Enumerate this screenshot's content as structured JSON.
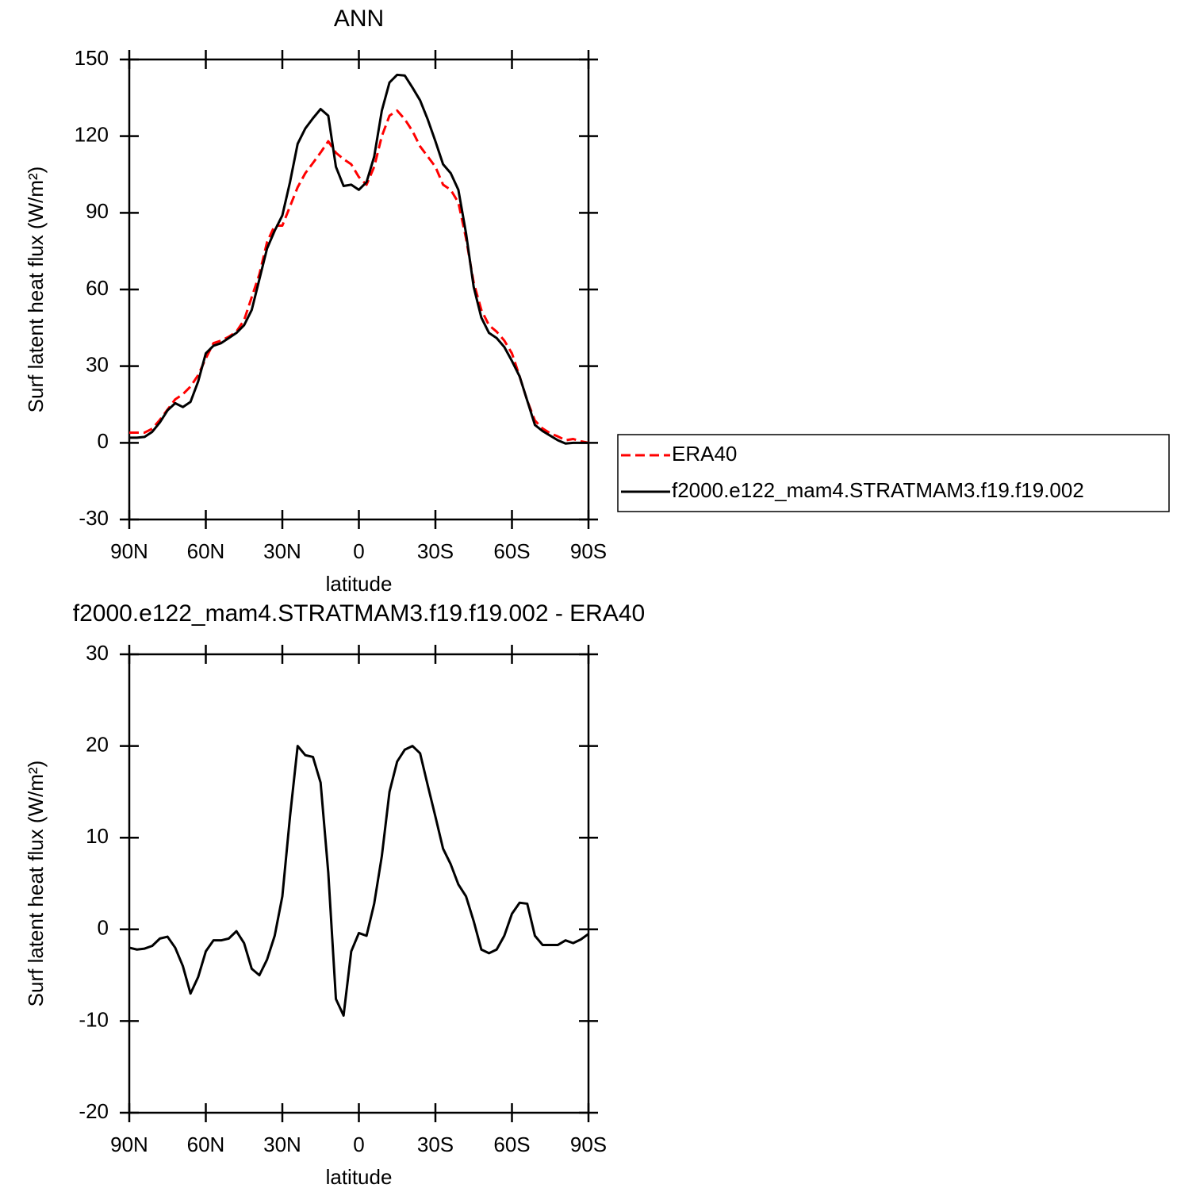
{
  "chart_data": [
    {
      "type": "line",
      "title": "ANN",
      "xlabel": "latitude",
      "ylabel": "Surf latent heat flux (W/m²)",
      "x": [
        90,
        87,
        84,
        81,
        78,
        75,
        72,
        69,
        66,
        63,
        60,
        57,
        54,
        51,
        48,
        45,
        42,
        39,
        36,
        33,
        30,
        27,
        24,
        21,
        18,
        15,
        12,
        9,
        6,
        3,
        0,
        -3,
        -6,
        -9,
        -12,
        -15,
        -18,
        -21,
        -24,
        -27,
        -30,
        -33,
        -36,
        -39,
        -42,
        -45,
        -48,
        -51,
        -54,
        -57,
        -60,
        -63,
        -66,
        -69,
        -72,
        -75,
        -78,
        -81,
        -84,
        -87,
        -90
      ],
      "series": [
        {
          "name": "ERA40",
          "color": "#ff0000",
          "linestyle": "dashed",
          "values": [
            4,
            4,
            4,
            5.5,
            9,
            13,
            17,
            19,
            22,
            26.5,
            33,
            39,
            40,
            41.5,
            43.5,
            48,
            57,
            66,
            78.5,
            85,
            85,
            92.5,
            100,
            105.5,
            109.5,
            113.6,
            118,
            113.5,
            111,
            109,
            104,
            101,
            108,
            120,
            128,
            130,
            126.6,
            122,
            116,
            112,
            108,
            101,
            99,
            94,
            80,
            62.7,
            52,
            46,
            43.5,
            40,
            35,
            26,
            16.5,
            8.7,
            5.6,
            3.7,
            2.5,
            1,
            1.5,
            0.6,
            0
          ]
        },
        {
          "name": "f2000.e122_mam4.STRATMAM3.f19.f19.002",
          "color": "#000000",
          "linestyle": "solid",
          "values": [
            2,
            2,
            2.3,
            4.3,
            8,
            12.7,
            15.5,
            14,
            16,
            24,
            35,
            38,
            39,
            41,
            43,
            46,
            52,
            64,
            76,
            83,
            89,
            102,
            117,
            123,
            127,
            130.6,
            128,
            108,
            100.5,
            101,
            99,
            102,
            112,
            130,
            141,
            144,
            143.7,
            139,
            134,
            126.5,
            118,
            109,
            105.5,
            99,
            82,
            61,
            49,
            43,
            41,
            37.5,
            32,
            26,
            16.5,
            7,
            4.6,
            2.8,
            1,
            -0.3,
            0,
            0,
            0
          ]
        }
      ],
      "xlim": [
        90,
        -90
      ],
      "xticks": [
        {
          "value": 90,
          "label": "90N"
        },
        {
          "value": 60,
          "label": "60N"
        },
        {
          "value": 30,
          "label": "30N"
        },
        0,
        {
          "value": -30,
          "label": "30S"
        },
        {
          "value": -60,
          "label": "60S"
        },
        {
          "value": -90,
          "label": "90S"
        }
      ],
      "ylim": [
        -30,
        150
      ],
      "yticks": [
        -30,
        0,
        30,
        60,
        90,
        120,
        150
      ],
      "legend": "right"
    },
    {
      "type": "line",
      "title": "f2000.e122_mam4.STRATMAM3.f19.f19.002 - ERA40",
      "xlabel": "latitude",
      "ylabel": "Surf latent heat flux (W/m²)",
      "x": [
        90,
        87,
        84,
        81,
        78,
        75,
        72,
        69,
        66,
        63,
        60,
        57,
        54,
        51,
        48,
        45,
        42,
        39,
        36,
        33,
        30,
        27,
        24,
        21,
        18,
        15,
        12,
        9,
        6,
        3,
        0,
        -3,
        -6,
        -9,
        -12,
        -15,
        -18,
        -21,
        -24,
        -27,
        -30,
        -33,
        -36,
        -39,
        -42,
        -45,
        -48,
        -51,
        -54,
        -57,
        -60,
        -63,
        -66,
        -69,
        -72,
        -75,
        -78,
        -81,
        -84,
        -87,
        -90
      ],
      "values": [
        -2,
        -2.2,
        -2.1,
        -1.8,
        -1,
        -0.8,
        -2,
        -4,
        -7,
        -5.2,
        -2.4,
        -1.2,
        -1.2,
        -1,
        -0.2,
        -1.5,
        -4.3,
        -5,
        -3.3,
        -0.7,
        3.6,
        12.3,
        20,
        19,
        18.8,
        16,
        6.2,
        -7.6,
        -9.4,
        -2.4,
        -0.4,
        -0.7,
        2.8,
        8,
        15,
        18.3,
        19.6,
        20,
        19.2,
        15.7,
        12.3,
        8.8,
        7.1,
        4.9,
        3.6,
        0.9,
        -2.2,
        -2.6,
        -2.2,
        -0.7,
        1.7,
        2.9,
        2.8,
        -0.7,
        -1.7,
        -1.7,
        -1.7,
        -1.2,
        -1.5,
        -1.1,
        -0.5
      ],
      "color": "#000000",
      "xlim": [
        90,
        -90
      ],
      "xticks": [
        {
          "value": 90,
          "label": "90N"
        },
        {
          "value": 60,
          "label": "60N"
        },
        {
          "value": 30,
          "label": "30N"
        },
        0,
        {
          "value": -30,
          "label": "30S"
        },
        {
          "value": -60,
          "label": "60S"
        },
        {
          "value": -90,
          "label": "90S"
        }
      ],
      "ylim": [
        -20,
        30
      ],
      "yticks": [
        -20,
        -10,
        0,
        10,
        20,
        30
      ]
    }
  ]
}
